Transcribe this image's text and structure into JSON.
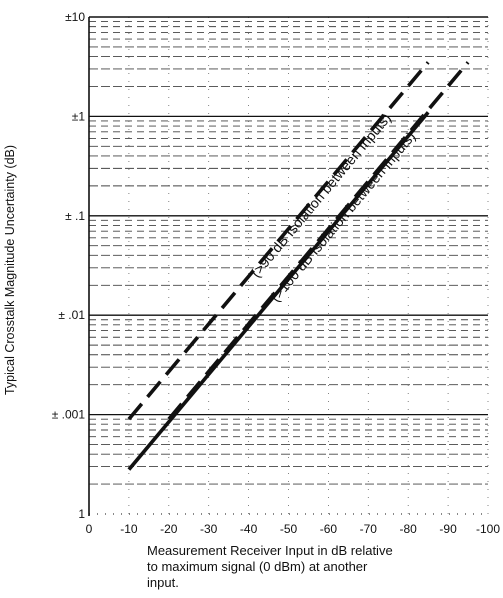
{
  "chart_data": {
    "type": "line",
    "title": "",
    "ylabel": "Typical Crosstalk Magnitude Uncertainty (dB)",
    "xlabel": "Measurement Receiver Input in dB relative\nto maximum signal (0 dBm) at another\ninput.",
    "x_ticks": [
      "0",
      "-10",
      "-20",
      "-30",
      "-40",
      "-50",
      "-60",
      "-70",
      "-80",
      "-90",
      "-100"
    ],
    "y_ticks": [
      "1",
      "± .001",
      "± .01",
      "± .1",
      "±1",
      "±10"
    ],
    "xlim": [
      0,
      -100
    ],
    "ylim": [
      0.0001,
      10
    ],
    "y_scale": "log",
    "grid": true,
    "series": [
      {
        "name": "(>90 dB Isolation between Inputs)",
        "style": "dashed",
        "x": [
          -10,
          -85
        ],
        "y": [
          0.0009,
          3.5
        ]
      },
      {
        "name": "",
        "style": "solid",
        "x": [
          -10,
          -85
        ],
        "y": [
          0.00028,
          1.1
        ]
      },
      {
        "name": "(>100 dB Isolation between Inputs)",
        "style": "dashed",
        "x": [
          -20,
          -95
        ],
        "y": [
          0.0009,
          3.5
        ]
      }
    ]
  }
}
